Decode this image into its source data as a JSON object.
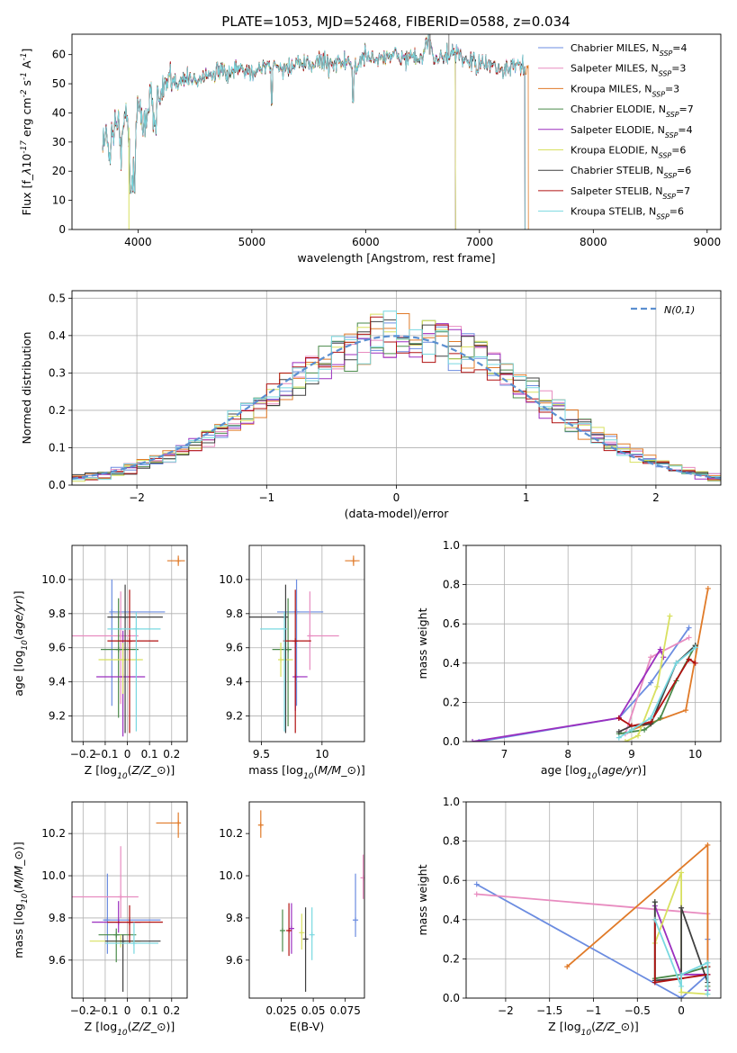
{
  "chart_data": [
    {
      "id": "spectrum",
      "type": "line",
      "title": "PLATE=1053, MJD=52468, FIBERID=0588, z=0.034",
      "xlabel": "wavelength [Angstrom, rest frame]",
      "ylabel": "Flux [f$_\\lambda$10$^{-17}$ erg cm$^{-2}$ s$^{-1}$ A$^{-1}$]",
      "xlim": [
        3420,
        9120
      ],
      "ylim": [
        0,
        67
      ],
      "xticks": [
        4000,
        5000,
        6000,
        7000,
        8000,
        9000
      ],
      "yticks": [
        0,
        10,
        20,
        30,
        40,
        50,
        60
      ],
      "grid": false,
      "legend_position": "top-right",
      "spectrum_x": [
        3690,
        3750,
        3800,
        3850,
        3900,
        3950,
        4000,
        4050,
        4100,
        4150,
        4200,
        4300,
        4400,
        4500,
        4600,
        4700,
        4800,
        4900,
        5000,
        5100,
        5200,
        5300,
        5400,
        5500,
        5600,
        5700,
        5800,
        5900,
        6000,
        6100,
        6200,
        6300,
        6400,
        6500,
        6563,
        6600,
        6700,
        6800,
        6900,
        7000,
        7100,
        7200,
        7300,
        7400
      ],
      "spectrum_y": [
        32,
        28,
        38,
        30,
        40,
        18,
        43,
        35,
        45,
        40,
        47,
        50,
        52,
        51,
        53,
        54,
        53,
        55,
        54,
        56,
        56,
        55,
        57,
        56,
        58,
        57,
        58,
        55,
        60,
        58,
        60,
        59,
        59,
        58,
        66,
        59,
        59,
        60,
        58,
        56,
        57,
        54,
        56,
        55
      ],
      "series": [
        {
          "name": "Chabrier MILES, N$_{SSP}$=4",
          "color": "#6b8ce0",
          "end": 7400
        },
        {
          "name": "Salpeter MILES, N$_{SSP}$=3",
          "color": "#e88cc0",
          "end": 7400
        },
        {
          "name": "Kroupa MILES, N$_{SSP}$=3",
          "color": "#e07a28",
          "end": 7430
        },
        {
          "name": "Chabrier ELODIE, N$_{SSP}$=7",
          "color": "#4a8a4a",
          "end": 6790
        },
        {
          "name": "Salpeter ELODIE, N$_{SSP}$=4",
          "color": "#9b2fbf",
          "end": 6790
        },
        {
          "name": "Kroupa ELODIE, N$_{SSP}$=6",
          "color": "#d8e060",
          "end": 6790
        },
        {
          "name": "Chabrier STELIB, N$_{SSP}$=6",
          "color": "#404040",
          "end": 7400
        },
        {
          "name": "Salpeter STELIB, N$_{SSP}$=7",
          "color": "#b01010",
          "end": 7400
        },
        {
          "name": "Kroupa STELIB, N$_{SSP}$=6",
          "color": "#78d8e0",
          "end": 7400
        }
      ]
    },
    {
      "id": "residuals",
      "type": "histogram",
      "xlabel": "(data-model)/error",
      "ylabel": "Normed distribution",
      "xlim": [
        -2.5,
        2.5
      ],
      "ylim": [
        0,
        0.52
      ],
      "xticks": [
        -2,
        -1,
        0,
        1,
        2
      ],
      "yticks": [
        0.0,
        0.1,
        0.2,
        0.3,
        0.4,
        0.5
      ],
      "grid": true,
      "legend": "$\\mathcal{N}(0,1)$",
      "legend_position": "top-right",
      "normal_color": "#5b8fd0",
      "bin_width": 0.1,
      "colors": [
        "#6b8ce0",
        "#e88cc0",
        "#e07a28",
        "#4a8a4a",
        "#9b2fbf",
        "#d8e060",
        "#404040",
        "#b01010",
        "#78d8e0"
      ]
    },
    {
      "id": "age_vs_Z",
      "type": "scatter",
      "xlabel": "Z [log$_{10}$($Z/Z_\\odot$)]",
      "ylabel": "age  [log$_{10}$($age/yr$)]",
      "xlim": [
        -0.25,
        0.27
      ],
      "ylim": [
        9.05,
        10.2
      ],
      "xticks": [
        -0.2,
        -0.1,
        0.0,
        0.1,
        0.2
      ],
      "yticks": [
        9.2,
        9.4,
        9.6,
        9.8,
        10.0
      ],
      "grid": true,
      "points": [
        {
          "x": -0.07,
          "y": 9.81,
          "xerr": [
            0.0,
            0.24
          ],
          "yerr": [
            0.55,
            0.19
          ],
          "color": "#6b8ce0"
        },
        {
          "x": -0.03,
          "y": 9.67,
          "xerr": [
            0.22,
            0.08
          ],
          "yerr": [
            0.4,
            0.26
          ],
          "color": "#e88cc0"
        },
        {
          "x": 0.23,
          "y": 10.11,
          "xerr": [
            0.05,
            0.03
          ],
          "yerr": [
            0.03,
            0.03
          ],
          "color": "#e07a28"
        },
        {
          "x": -0.04,
          "y": 9.59,
          "xerr": [
            0.08,
            0.09
          ],
          "yerr": [
            0.4,
            0.3
          ],
          "color": "#4a8a4a"
        },
        {
          "x": -0.02,
          "y": 9.43,
          "xerr": [
            0.12,
            0.1
          ],
          "yerr": [
            0.35,
            0.27
          ],
          "color": "#9b2fbf"
        },
        {
          "x": -0.02,
          "y": 9.53,
          "xerr": [
            0.11,
            0.09
          ],
          "yerr": [
            0.2,
            0.1
          ],
          "color": "#d8e060"
        },
        {
          "x": -0.01,
          "y": 9.78,
          "xerr": [
            0.08,
            0.17
          ],
          "yerr": [
            0.68,
            0.19
          ],
          "color": "#404040"
        },
        {
          "x": 0.01,
          "y": 9.64,
          "xerr": [
            0.1,
            0.13
          ],
          "yerr": [
            0.54,
            0.3
          ],
          "color": "#b01010"
        },
        {
          "x": 0.04,
          "y": 9.71,
          "xerr": [
            0.13,
            0.11
          ],
          "yerr": [
            0.6,
            0.1
          ],
          "color": "#78d8e0"
        }
      ]
    },
    {
      "id": "age_vs_mass",
      "type": "scatter",
      "xlabel": "mass [log$_{10}$($M/M_\\odot$)]",
      "ylabel": "",
      "xlim": [
        9.4,
        10.35
      ],
      "ylim": [
        9.05,
        10.2
      ],
      "xticks": [
        9.5,
        10.0
      ],
      "yticks": [
        9.2,
        9.4,
        9.6,
        9.8,
        10.0
      ],
      "grid": true,
      "points": [
        {
          "x": 9.79,
          "y": 9.81,
          "xerr": [
            0.16,
            0.22
          ],
          "yerr": [
            0.55,
            0.19
          ],
          "color": "#6b8ce0"
        },
        {
          "x": 9.9,
          "y": 9.67,
          "xerr": [
            0.0,
            0.24
          ],
          "yerr": [
            0.2,
            0.26
          ],
          "color": "#e88cc0"
        },
        {
          "x": 10.26,
          "y": 10.11,
          "xerr": [
            0.07,
            0.05
          ],
          "yerr": [
            0.03,
            0.03
          ],
          "color": "#e07a28"
        },
        {
          "x": 9.72,
          "y": 9.59,
          "xerr": [
            0.13,
            0.03
          ],
          "yerr": [
            0.45,
            0.3
          ],
          "color": "#4a8a4a"
        },
        {
          "x": 9.78,
          "y": 9.43,
          "xerr": [
            0.0,
            0.1
          ],
          "yerr": [
            0.2,
            0.2
          ],
          "color": "#9b2fbf"
        },
        {
          "x": 9.66,
          "y": 9.53,
          "xerr": [
            0.0,
            0.1
          ],
          "yerr": [
            0.1,
            0.1
          ],
          "color": "#d8e060"
        },
        {
          "x": 9.7,
          "y": 9.78,
          "xerr": [
            0.3,
            0.0
          ],
          "yerr": [
            0.68,
            0.19
          ],
          "color": "#404040"
        },
        {
          "x": 9.78,
          "y": 9.64,
          "xerr": [
            0.1,
            0.13
          ],
          "yerr": [
            0.54,
            0.3
          ],
          "color": "#b01010"
        },
        {
          "x": 9.69,
          "y": 9.71,
          "xerr": [
            0.2,
            0.0
          ],
          "yerr": [
            0.6,
            0.1
          ],
          "color": "#78d8e0"
        }
      ]
    },
    {
      "id": "weight_vs_age",
      "type": "line",
      "xlabel": "age  [log$_{10}$($age/yr$)]",
      "ylabel": "mass weight",
      "xlim": [
        6.4,
        10.4
      ],
      "ylim": [
        0,
        1
      ],
      "xticks": [
        7,
        8,
        9,
        10
      ],
      "yticks": [
        0.0,
        0.2,
        0.4,
        0.6,
        0.8,
        1.0
      ],
      "grid": true,
      "series": [
        {
          "color": "#6b8ce0",
          "x": [
            6.6,
            8.8,
            9.3,
            9.9
          ],
          "y": [
            0.0,
            0.12,
            0.3,
            0.58
          ]
        },
        {
          "color": "#e88cc0",
          "x": [
            8.9,
            9.3,
            9.9
          ],
          "y": [
            0.04,
            0.43,
            0.53
          ]
        },
        {
          "color": "#e07a28",
          "x": [
            9.0,
            9.85,
            10.2
          ],
          "y": [
            0.06,
            0.16,
            0.78
          ]
        },
        {
          "color": "#4a8a4a",
          "x": [
            8.8,
            9.2,
            9.45,
            9.7,
            10.0
          ],
          "y": [
            0.04,
            0.06,
            0.12,
            0.31,
            0.49
          ]
        },
        {
          "color": "#9b2fbf",
          "x": [
            6.5,
            8.8,
            9.45,
            9.5
          ],
          "y": [
            0.0,
            0.12,
            0.47,
            0.43
          ]
        },
        {
          "color": "#d8e060",
          "x": [
            8.9,
            9.1,
            9.4,
            9.6
          ],
          "y": [
            0.0,
            0.03,
            0.28,
            0.64
          ]
        },
        {
          "color": "#404040",
          "x": [
            8.8,
            9.0,
            9.3,
            9.7,
            10.0
          ],
          "y": [
            0.05,
            0.08,
            0.09,
            0.4,
            0.49
          ]
        },
        {
          "color": "#b01010",
          "x": [
            8.8,
            9.0,
            9.3,
            9.9,
            10.0
          ],
          "y": [
            0.12,
            0.08,
            0.1,
            0.42,
            0.4
          ]
        },
        {
          "color": "#78d8e0",
          "x": [
            8.8,
            9.0,
            9.3,
            9.7,
            10.0
          ],
          "y": [
            0.02,
            0.06,
            0.12,
            0.4,
            0.48
          ]
        }
      ]
    },
    {
      "id": "mass_vs_Z",
      "type": "scatter",
      "xlabel": "Z [log$_{10}$($Z/Z_\\odot$)]",
      "ylabel": "mass [log$_{10}$($M/M_\\odot$)]",
      "xlim": [
        -0.25,
        0.27
      ],
      "ylim": [
        9.42,
        10.35
      ],
      "xticks": [
        -0.2,
        -0.1,
        0.0,
        0.1,
        0.2
      ],
      "yticks": [
        9.6,
        9.8,
        10.0,
        10.2
      ],
      "grid": true,
      "points": [
        {
          "x": -0.09,
          "y": 9.79,
          "xerr": [
            0.02,
            0.24
          ],
          "yerr": [
            0.16,
            0.22
          ],
          "color": "#6b8ce0"
        },
        {
          "x": -0.03,
          "y": 9.9,
          "xerr": [
            0.22,
            0.08
          ],
          "yerr": [
            0.1,
            0.24
          ],
          "color": "#e88cc0"
        },
        {
          "x": 0.23,
          "y": 10.25,
          "xerr": [
            0.1,
            0.01
          ],
          "yerr": [
            0.07,
            0.05
          ],
          "color": "#e07a28"
        },
        {
          "x": -0.05,
          "y": 9.72,
          "xerr": [
            0.08,
            0.09
          ],
          "yerr": [
            0.13,
            0.03
          ],
          "color": "#4a8a4a"
        },
        {
          "x": -0.04,
          "y": 9.78,
          "xerr": [
            0.12,
            0.1
          ],
          "yerr": [
            0.05,
            0.1
          ],
          "color": "#9b2fbf"
        },
        {
          "x": -0.03,
          "y": 9.69,
          "xerr": [
            0.14,
            0.09
          ],
          "yerr": [
            0.03,
            0.03
          ],
          "color": "#d8e060"
        },
        {
          "x": -0.02,
          "y": 9.69,
          "xerr": [
            0.08,
            0.17
          ],
          "yerr": [
            0.24,
            0.03
          ],
          "color": "#404040"
        },
        {
          "x": 0.01,
          "y": 9.78,
          "xerr": [
            0.1,
            0.15
          ],
          "yerr": [
            0.1,
            0.08
          ],
          "color": "#b01010"
        },
        {
          "x": 0.03,
          "y": 9.68,
          "xerr": [
            0.13,
            0.11
          ],
          "yerr": [
            0.05,
            0.1
          ],
          "color": "#78d8e0"
        }
      ]
    },
    {
      "id": "mass_vs_EBV",
      "type": "scatter",
      "xlabel": "E(B-V)",
      "ylabel": "",
      "xlim": [
        0.0,
        0.09
      ],
      "ylim": [
        9.42,
        10.35
      ],
      "xticks": [
        0.025,
        0.05,
        0.075
      ],
      "yticks": [
        9.6,
        9.8,
        10.0,
        10.2
      ],
      "grid": false,
      "points": [
        {
          "x": 0.083,
          "y": 9.79,
          "yerr": [
            0.08,
            0.22
          ],
          "color": "#6b8ce0"
        },
        {
          "x": 0.089,
          "y": 9.99,
          "yerr": [
            0.1,
            0.11
          ],
          "color": "#e88cc0"
        },
        {
          "x": 0.009,
          "y": 10.24,
          "yerr": [
            0.06,
            0.07
          ],
          "color": "#e07a28"
        },
        {
          "x": 0.026,
          "y": 9.74,
          "yerr": [
            0.1,
            0.1
          ],
          "color": "#4a8a4a"
        },
        {
          "x": 0.033,
          "y": 9.75,
          "yerr": [
            0.12,
            0.12
          ],
          "color": "#9b2fbf"
        },
        {
          "x": 0.041,
          "y": 9.73,
          "yerr": [
            0.08,
            0.09
          ],
          "color": "#d8e060"
        },
        {
          "x": 0.044,
          "y": 9.7,
          "yerr": [
            0.25,
            0.15
          ],
          "color": "#404040"
        },
        {
          "x": 0.031,
          "y": 9.74,
          "yerr": [
            0.12,
            0.13
          ],
          "color": "#b01010"
        },
        {
          "x": 0.049,
          "y": 9.72,
          "yerr": [
            0.12,
            0.13
          ],
          "color": "#78d8e0"
        }
      ]
    },
    {
      "id": "weight_vs_Z",
      "type": "line",
      "xlabel": "Z [log$_{10}$($Z/Z_\\odot$)]",
      "ylabel": "mass weight",
      "xlim": [
        -2.45,
        0.45
      ],
      "ylim": [
        0,
        1
      ],
      "xticks": [
        -2.0,
        -1.5,
        -1.0,
        -0.5,
        0.0
      ],
      "yticks": [
        0.0,
        0.2,
        0.4,
        0.6,
        0.8,
        1.0
      ],
      "grid": true,
      "series": [
        {
          "color": "#6b8ce0",
          "x": [
            -2.33,
            0.0,
            0.3,
            0.3,
            0.3
          ],
          "y": [
            0.58,
            0.0,
            0.12,
            0.3,
            0.04
          ]
        },
        {
          "color": "#e88cc0",
          "x": [
            -2.33,
            0.3,
            0.3,
            0.3
          ],
          "y": [
            0.53,
            0.43,
            0.12,
            0.04
          ]
        },
        {
          "color": "#e07a28",
          "x": [
            -1.3,
            0.3,
            0.3,
            0.3
          ],
          "y": [
            0.16,
            0.78,
            0.06,
            0.04
          ]
        },
        {
          "color": "#4a8a4a",
          "x": [
            -0.3,
            -0.3,
            0.0,
            0.3,
            0.3
          ],
          "y": [
            0.49,
            0.1,
            0.12,
            0.16,
            0.06
          ]
        },
        {
          "color": "#9b2fbf",
          "x": [
            -0.3,
            0.0,
            0.3,
            0.3
          ],
          "y": [
            0.47,
            0.12,
            0.12,
            0.04
          ]
        },
        {
          "color": "#d8e060",
          "x": [
            -0.3,
            0.0,
            0.0,
            0.3
          ],
          "y": [
            0.28,
            0.64,
            0.03,
            0.02
          ]
        },
        {
          "color": "#404040",
          "x": [
            -0.3,
            -0.3,
            0.0,
            0.0,
            0.3
          ],
          "y": [
            0.49,
            0.09,
            0.1,
            0.46,
            0.08
          ]
        },
        {
          "color": "#b01010",
          "x": [
            -0.3,
            -0.3,
            0.0,
            0.3,
            0.3
          ],
          "y": [
            0.4,
            0.08,
            0.1,
            0.12,
            0.16
          ]
        },
        {
          "color": "#78d8e0",
          "x": [
            -0.3,
            0.0,
            0.0,
            0.3,
            0.3
          ],
          "y": [
            0.4,
            0.06,
            0.12,
            0.18,
            0.02
          ]
        }
      ]
    }
  ]
}
